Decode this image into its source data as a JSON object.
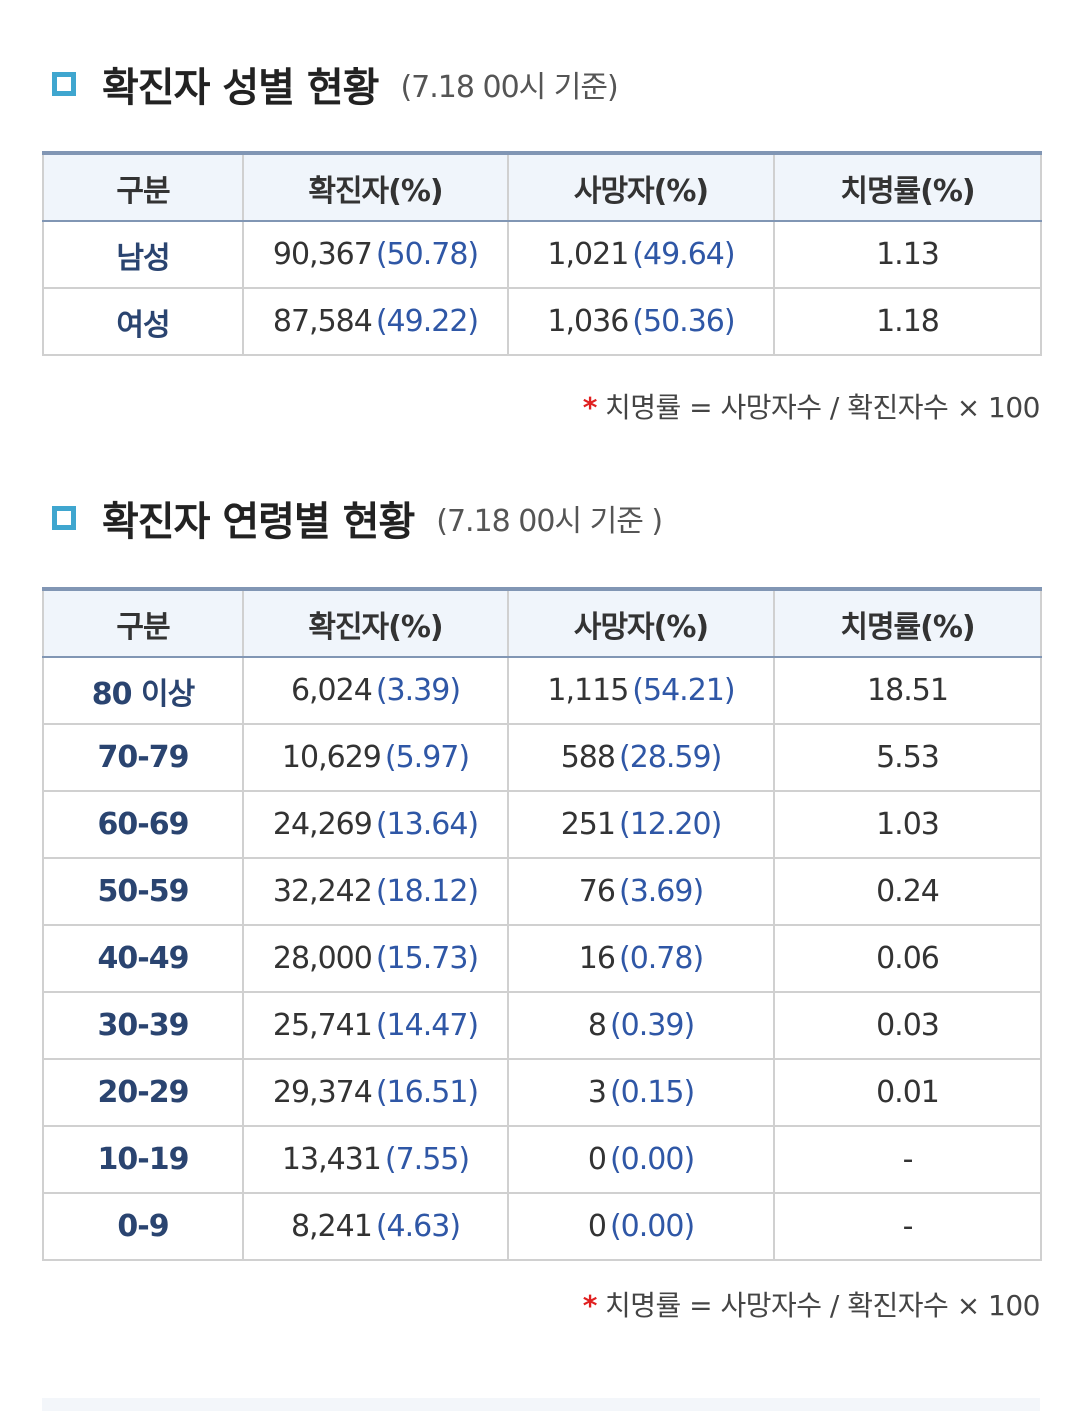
{
  "headers": [
    "구분",
    "확진자(%)",
    "사망자(%)",
    "치명률(%)"
  ],
  "gender": {
    "title": "확진자 성별 현황",
    "date": "(7.18 00시 기준)",
    "rows": [
      {
        "cat": "남성",
        "cases": "90,367",
        "cases_pct": "(50.78)",
        "deaths": "1,021",
        "deaths_pct": "(49.64)",
        "rate": "1.13"
      },
      {
        "cat": "여성",
        "cases": "87,584",
        "cases_pct": "(49.22)",
        "deaths": "1,036",
        "deaths_pct": "(50.36)",
        "rate": "1.18"
      }
    ],
    "note_star": "*",
    "note": "치명률 = 사망자수 / 확진자수 × 100"
  },
  "age": {
    "title": "확진자 연령별 현황",
    "date": "(7.18 00시 기준 )",
    "rows": [
      {
        "cat": "80 이상",
        "cases": "6,024",
        "cases_pct": "(3.39)",
        "deaths": "1,115",
        "deaths_pct": "(54.21)",
        "rate": "18.51"
      },
      {
        "cat": "70-79",
        "cases": "10,629",
        "cases_pct": "(5.97)",
        "deaths": "588",
        "deaths_pct": "(28.59)",
        "rate": "5.53"
      },
      {
        "cat": "60-69",
        "cases": "24,269",
        "cases_pct": "(13.64)",
        "deaths": "251",
        "deaths_pct": "(12.20)",
        "rate": "1.03"
      },
      {
        "cat": "50-59",
        "cases": "32,242",
        "cases_pct": "(18.12)",
        "deaths": "76",
        "deaths_pct": "(3.69)",
        "rate": "0.24"
      },
      {
        "cat": "40-49",
        "cases": "28,000",
        "cases_pct": "(15.73)",
        "deaths": "16",
        "deaths_pct": "(0.78)",
        "rate": "0.06"
      },
      {
        "cat": "30-39",
        "cases": "25,741",
        "cases_pct": "(14.47)",
        "deaths": "8",
        "deaths_pct": "(0.39)",
        "rate": "0.03"
      },
      {
        "cat": "20-29",
        "cases": "29,374",
        "cases_pct": "(16.51)",
        "deaths": "3",
        "deaths_pct": "(0.15)",
        "rate": "0.01"
      },
      {
        "cat": "10-19",
        "cases": "13,431",
        "cases_pct": "(7.55)",
        "deaths": "0",
        "deaths_pct": "(0.00)",
        "rate": "-"
      },
      {
        "cat": "0-9",
        "cases": "8,241",
        "cases_pct": "(4.63)",
        "deaths": "0",
        "deaths_pct": "(0.00)",
        "rate": "-"
      }
    ],
    "note_star": "*",
    "note": "치명률 = 사망자수 / 확진자수 × 100"
  }
}
